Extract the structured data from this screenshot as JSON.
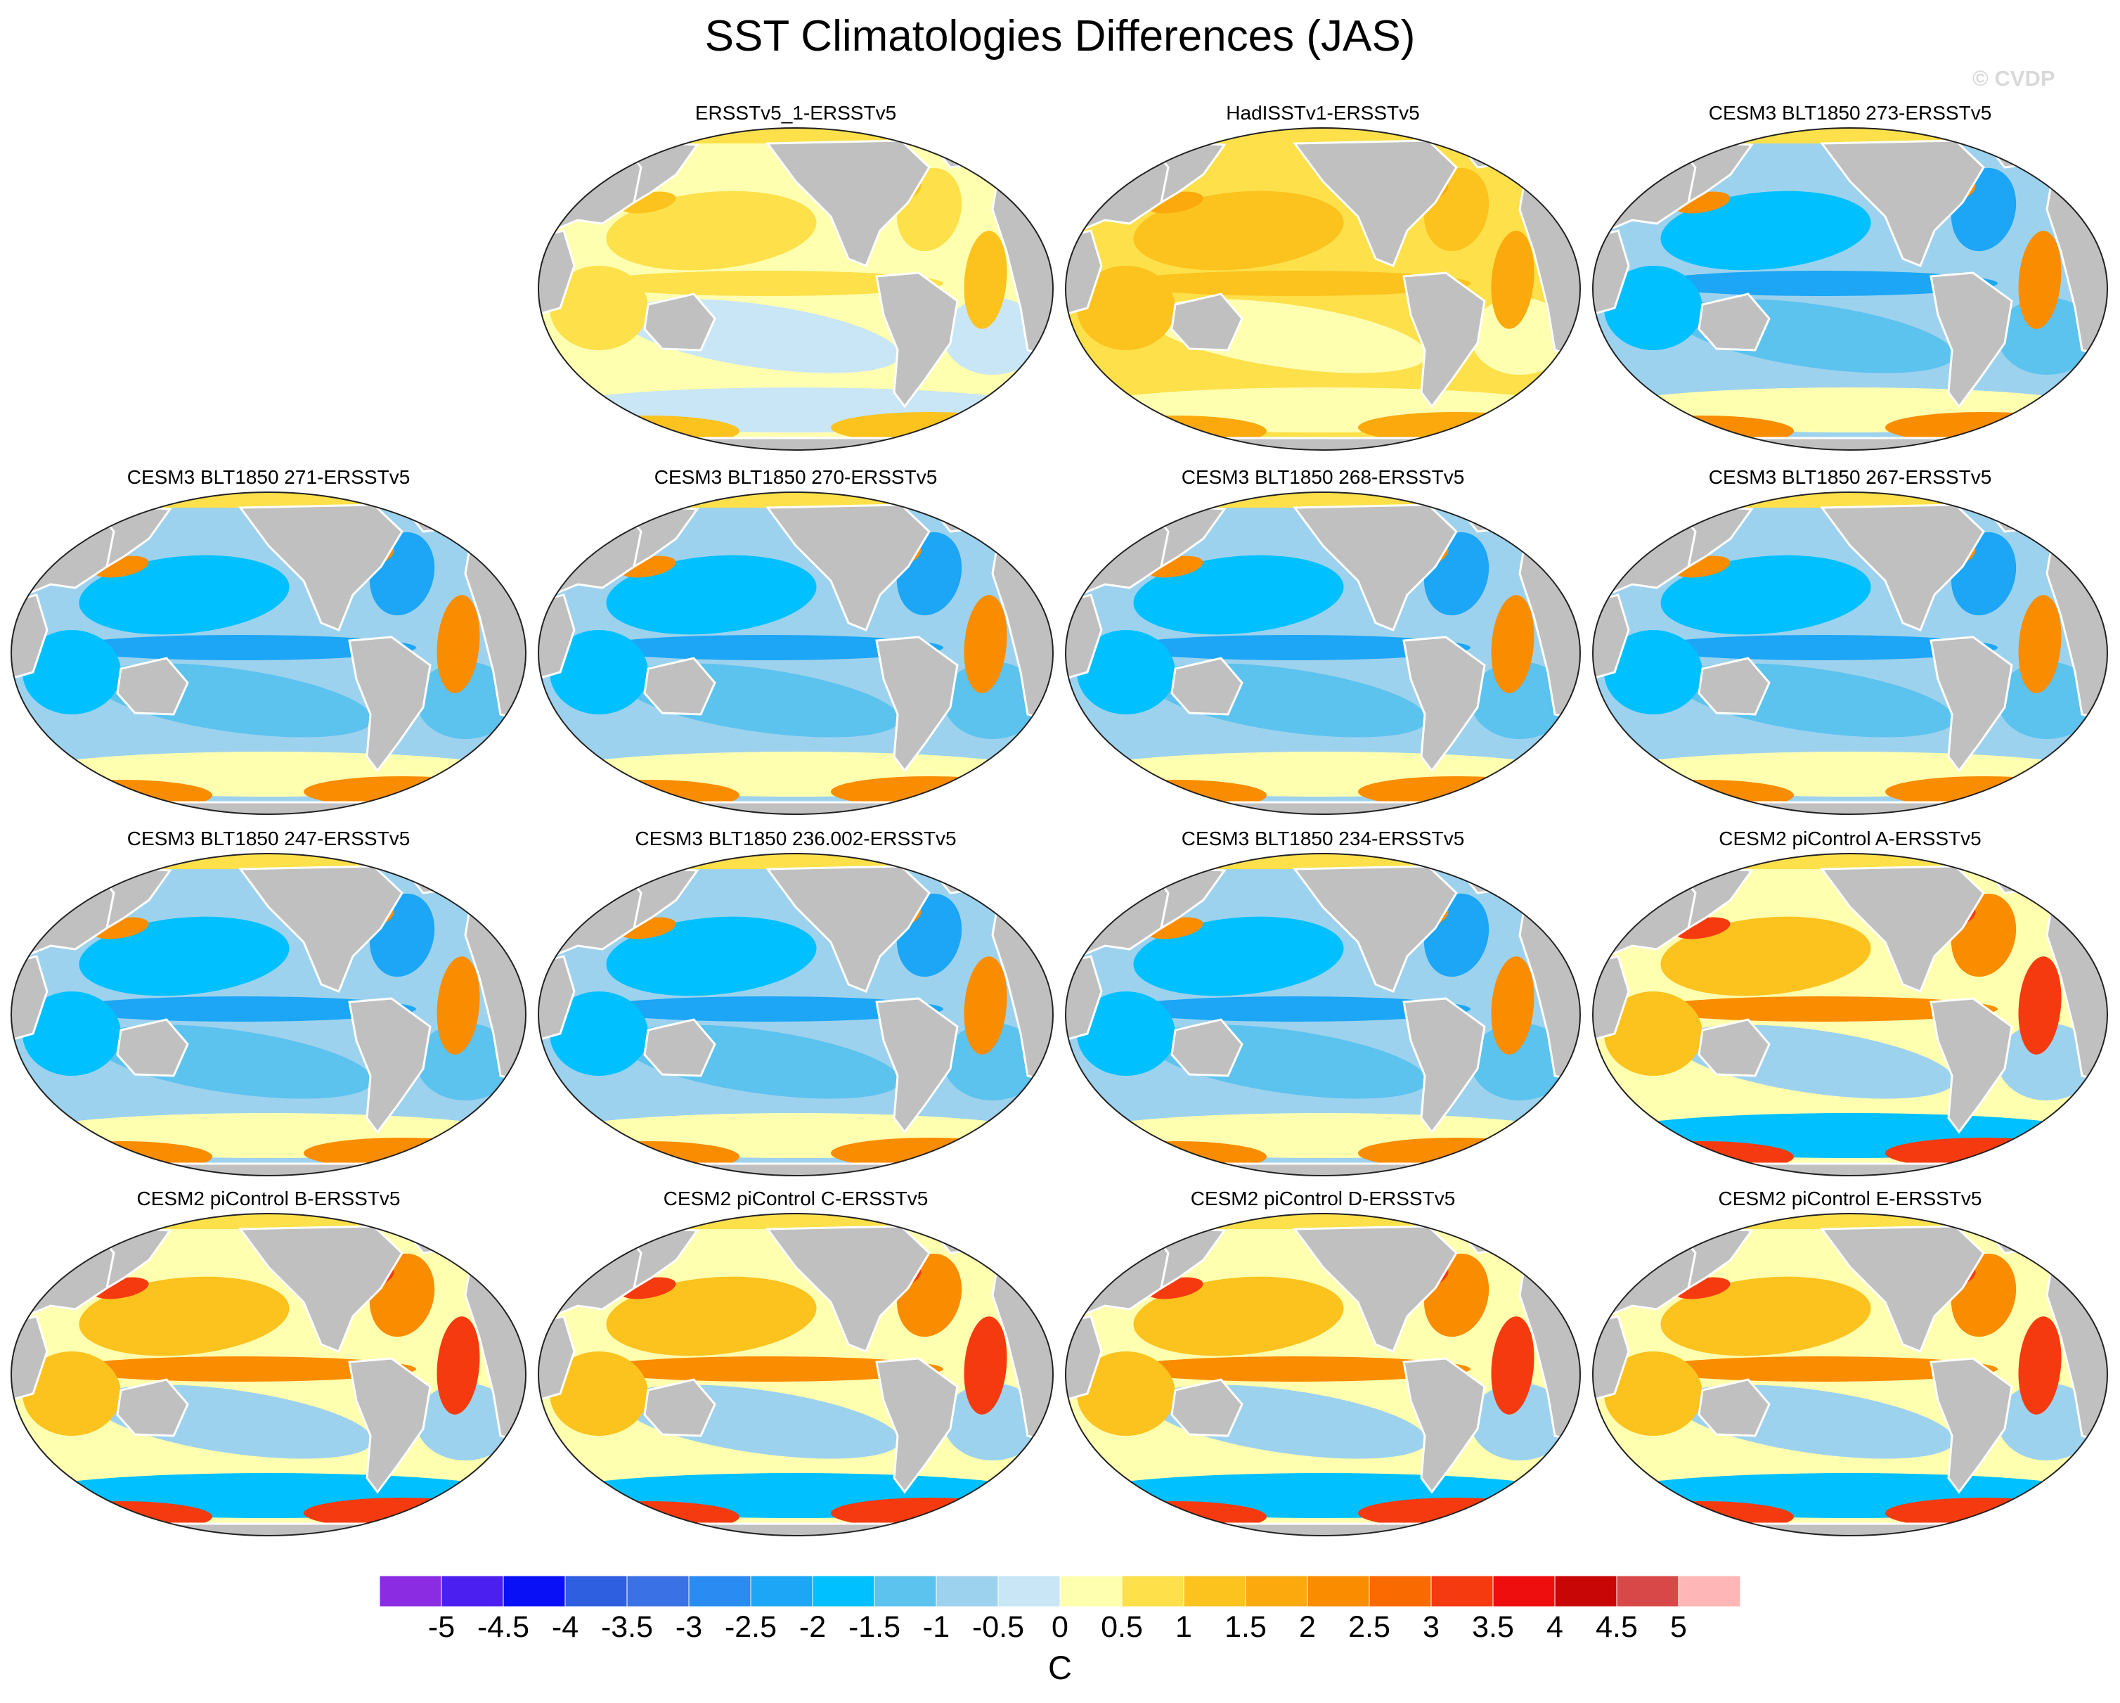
{
  "title": "SST Climatologies Differences (JAS)",
  "watermark": "© CVDP",
  "panels": [
    {
      "title": "ERSSTv5_1-ERSSTv5",
      "pattern": "obs_small"
    },
    {
      "title": "HadISSTv1-ERSSTv5",
      "pattern": "obs_warm"
    },
    {
      "title": "CESM3 BLT1850 273-ERSSTv5",
      "pattern": "cesm3"
    },
    {
      "title": "CESM3 BLT1850 271-ERSSTv5",
      "pattern": "cesm3"
    },
    {
      "title": "CESM3 BLT1850 270-ERSSTv5",
      "pattern": "cesm3"
    },
    {
      "title": "CESM3 BLT1850 268-ERSSTv5",
      "pattern": "cesm3"
    },
    {
      "title": "CESM3 BLT1850 267-ERSSTv5",
      "pattern": "cesm3"
    },
    {
      "title": "CESM3 BLT1850 247-ERSSTv5",
      "pattern": "cesm3"
    },
    {
      "title": "CESM3 BLT1850 236.002-ERSSTv5",
      "pattern": "cesm3"
    },
    {
      "title": "CESM3 BLT1850 234-ERSSTv5",
      "pattern": "cesm3"
    },
    {
      "title": "CESM2 piControl A-ERSSTv5",
      "pattern": "cesm2"
    },
    {
      "title": "CESM2 piControl B-ERSSTv5",
      "pattern": "cesm2"
    },
    {
      "title": "CESM2 piControl C-ERSSTv5",
      "pattern": "cesm2"
    },
    {
      "title": "CESM2 piControl D-ERSSTv5",
      "pattern": "cesm2"
    },
    {
      "title": "CESM2 piControl E-ERSSTv5",
      "pattern": "cesm2"
    }
  ],
  "colorbar": {
    "colors": [
      "#8b2be2",
      "#4a1ff0",
      "#0a10f5",
      "#2d5fe0",
      "#3a72e6",
      "#2a8bf2",
      "#1ca6f5",
      "#00c0ff",
      "#5cc2ee",
      "#9dd2ee",
      "#c8e6f6",
      "#ffffb0",
      "#fde04a",
      "#fcc21e",
      "#fba90c",
      "#fa8c00",
      "#f96a00",
      "#f53a10",
      "#ee0e0e",
      "#c80606",
      "#d84848",
      "#ffb6b6"
    ],
    "levels": [
      "-5",
      "-4.5",
      "-4",
      "-3.5",
      "-3",
      "-2.5",
      "-2",
      "-1.5",
      "-1",
      "-0.5",
      "0",
      "0.5",
      "1",
      "1.5",
      "2",
      "2.5",
      "3",
      "3.5",
      "4",
      "4.5",
      "5"
    ],
    "units": "C"
  },
  "colors": {
    "land": "#c0c0c0",
    "coast": "#ffffff",
    "outline": "#222222"
  }
}
